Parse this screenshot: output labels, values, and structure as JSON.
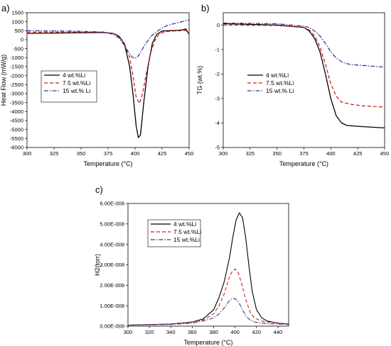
{
  "chart_data": [
    {
      "panel_label": "a)",
      "type": "line",
      "xlabel": "Temperature (°C)",
      "ylabel": "Heat Flow (mW/g)",
      "xlim": [
        300,
        450
      ],
      "ylim": [
        -6000,
        1500
      ],
      "xticks": [
        "300",
        "325",
        "350",
        "375",
        "400",
        "425",
        "450"
      ],
      "yticks": [
        "1500",
        "1000",
        "500",
        "0",
        "-500",
        "-1000",
        "-1500",
        "-2000",
        "-2500",
        "-3000",
        "-3500",
        "-4000",
        "-4500",
        "-5000",
        "-5500",
        "-6000"
      ],
      "grid": false,
      "legend_position": "center-left",
      "series": [
        {
          "name": "4 wt.%Li",
          "color": "#000000",
          "dash": "solid",
          "x": [
            300,
            340,
            370,
            380,
            385,
            390,
            395,
            398,
            401,
            403,
            405,
            408,
            412,
            416,
            420,
            425,
            430,
            440,
            445,
            447,
            450
          ],
          "y": [
            350,
            380,
            400,
            350,
            200,
            -200,
            -1500,
            -3000,
            -4800,
            -5450,
            -5300,
            -3500,
            -1500,
            -200,
            300,
            480,
            500,
            520,
            560,
            600,
            300
          ]
        },
        {
          "name": "7.5 wt.%Li",
          "color": "#cc2222",
          "dash": "dash",
          "x": [
            300,
            340,
            370,
            380,
            385,
            390,
            395,
            398,
            401,
            404,
            407,
            410,
            414,
            418,
            422,
            428,
            435,
            442,
            447,
            450
          ],
          "y": [
            420,
            430,
            420,
            350,
            150,
            -200,
            -1000,
            -2000,
            -3200,
            -3550,
            -3000,
            -2000,
            -800,
            -100,
            300,
            450,
            480,
            500,
            520,
            300
          ]
        },
        {
          "name": "15 wt.% Li",
          "color": "#3a3a99",
          "dash": "dashdot",
          "x": [
            300,
            340,
            370,
            380,
            385,
            390,
            394,
            397,
            400,
            403,
            406,
            410,
            415,
            420,
            425,
            430,
            440,
            450
          ],
          "y": [
            500,
            480,
            430,
            300,
            100,
            -300,
            -700,
            -950,
            -1050,
            -900,
            -600,
            -200,
            200,
            450,
            650,
            800,
            950,
            1100
          ]
        }
      ]
    },
    {
      "panel_label": "b)",
      "type": "line",
      "xlabel": "Temperature (°C)",
      "ylabel": "TG (wt.%)",
      "xlim": [
        300,
        450
      ],
      "ylim": [
        -5,
        0.5
      ],
      "xticks": [
        "300",
        "325",
        "350",
        "375",
        "400",
        "425",
        "450"
      ],
      "yticks": [
        "0",
        "-1",
        "-2",
        "-3",
        "-4",
        "-5"
      ],
      "grid": false,
      "legend_position": "center-left",
      "series": [
        {
          "name": "4 wt.%Li",
          "color": "#000000",
          "dash": "solid",
          "x": [
            300,
            350,
            375,
            380,
            385,
            390,
            395,
            400,
            405,
            410,
            415,
            420,
            430,
            450
          ],
          "y": [
            0.05,
            0.0,
            -0.1,
            -0.25,
            -0.55,
            -1.1,
            -2.0,
            -3.0,
            -3.7,
            -4.0,
            -4.1,
            -4.12,
            -4.15,
            -4.2
          ]
        },
        {
          "name": "7.5 wt.%Li",
          "color": "#cc2222",
          "dash": "dash",
          "x": [
            300,
            350,
            375,
            380,
            385,
            390,
            395,
            400,
            405,
            410,
            415,
            420,
            430,
            450
          ],
          "y": [
            0.0,
            -0.02,
            -0.1,
            -0.2,
            -0.45,
            -0.9,
            -1.6,
            -2.4,
            -2.9,
            -3.15,
            -3.2,
            -3.25,
            -3.3,
            -3.35
          ]
        },
        {
          "name": "15 wt.% Li",
          "color": "#3a3a99",
          "dash": "dashdot",
          "x": [
            300,
            350,
            375,
            380,
            385,
            390,
            395,
            400,
            405,
            410,
            415,
            420,
            430,
            450
          ],
          "y": [
            0.08,
            0.05,
            -0.05,
            -0.1,
            -0.25,
            -0.45,
            -0.75,
            -1.1,
            -1.35,
            -1.5,
            -1.58,
            -1.62,
            -1.65,
            -1.72
          ]
        }
      ]
    },
    {
      "panel_label": "c)",
      "type": "line",
      "xlabel": "Temperature (°C)",
      "ylabel": "H2(torr)",
      "xlim": [
        300,
        450
      ],
      "ylim": [
        0,
        6e-08
      ],
      "xticks": [
        "300",
        "320",
        "340",
        "360",
        "380",
        "400",
        "420",
        "440"
      ],
      "yticks": [
        "0.00E-008",
        "1.00E-008",
        "2.00E-008",
        "3.00E-008",
        "4.00E-008",
        "5.00E-008",
        "6.00E-008"
      ],
      "grid": false,
      "legend_position": "top-left",
      "series": [
        {
          "name": "4 wt.%Li",
          "color": "#000000",
          "dash": "solid",
          "x": [
            300,
            340,
            360,
            370,
            380,
            385,
            390,
            395,
            398,
            401,
            404,
            407,
            410,
            413,
            416,
            420,
            425,
            430,
            440,
            450
          ],
          "y": [
            5e-10,
            1e-09,
            2e-09,
            3.5e-09,
            8e-09,
            1.4e-08,
            2.2e-08,
            3.4e-08,
            4.4e-08,
            5.2e-08,
            5.55e-08,
            5.3e-08,
            4.3e-08,
            2.9e-08,
            1.7e-08,
            8e-09,
            4e-09,
            2.5e-09,
            1.5e-09,
            1e-09
          ]
        },
        {
          "name": "7.5 wt.%Li",
          "color": "#cc2222",
          "dash": "dash",
          "x": [
            300,
            340,
            360,
            370,
            380,
            385,
            390,
            394,
            397,
            400,
            403,
            406,
            410,
            414,
            418,
            425,
            430,
            440,
            450
          ],
          "y": [
            5e-10,
            1e-09,
            2e-09,
            3e-09,
            6e-09,
            1e-08,
            1.6e-08,
            2.3e-08,
            2.65e-08,
            2.8e-08,
            2.6e-08,
            2.1e-08,
            1.3e-08,
            7e-09,
            4e-09,
            2.5e-09,
            2e-09,
            1.5e-09,
            1e-09
          ]
        },
        {
          "name": "15 wt.%Li",
          "color": "#3a3a99",
          "dash": "dashdot",
          "x": [
            300,
            340,
            360,
            370,
            380,
            385,
            390,
            394,
            397,
            400,
            403,
            406,
            410,
            414,
            418,
            425,
            430,
            440,
            450
          ],
          "y": [
            5e-10,
            8e-10,
            1.5e-09,
            2.5e-09,
            4e-09,
            6e-09,
            9e-09,
            1.2e-08,
            1.35e-08,
            1.35e-08,
            1.2e-08,
            9e-09,
            5e-09,
            3e-09,
            2e-09,
            1.5e-09,
            1.2e-09,
            1e-09,
            8e-10
          ]
        }
      ]
    }
  ]
}
